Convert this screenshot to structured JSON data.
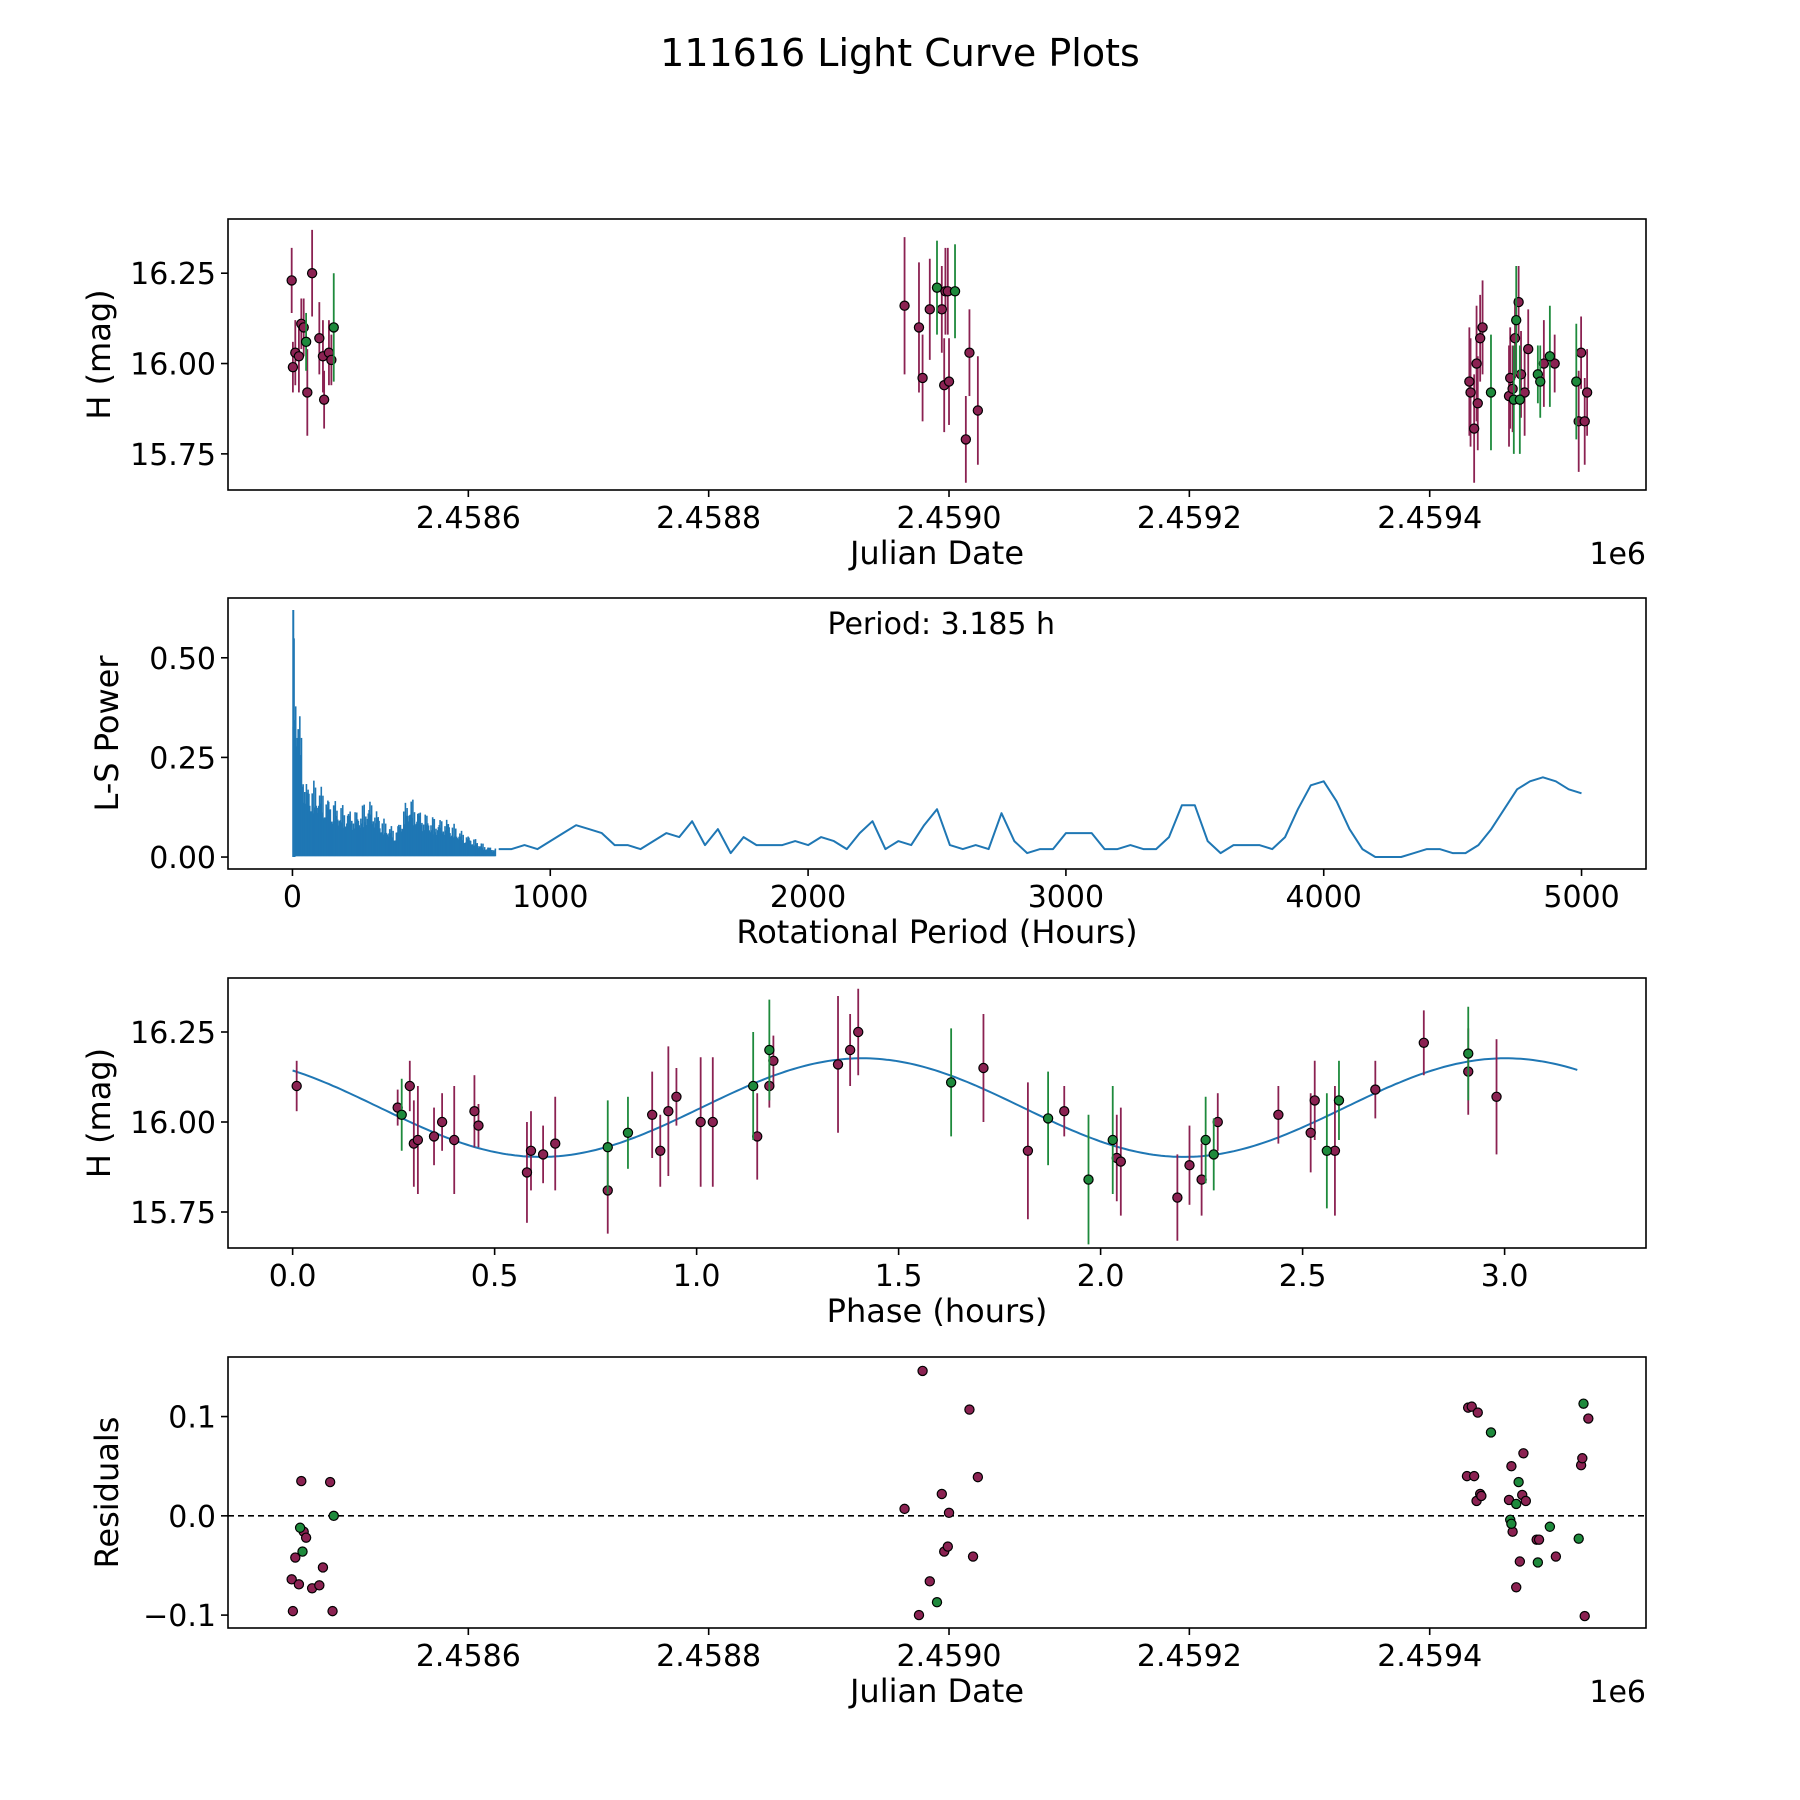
{
  "figure_title": "111616 Light Curve Plots",
  "colors": {
    "magenta_points": "#8b2252",
    "green_points": "#1e8a3c",
    "fit_line": "#1f77b4",
    "axis": "#000000"
  },
  "chart_data": [
    {
      "id": "light_curve",
      "type": "scatter",
      "xlabel": "Julian Date",
      "ylabel": "H (mag)",
      "x_offset_label": "1e6",
      "xlim": [
        2.4584,
        2.45958
      ],
      "ylim": [
        15.65,
        16.4
      ],
      "xticks": [
        2.4586,
        2.4588,
        2.459,
        2.4592,
        2.4594
      ],
      "xtick_labels": [
        "2.4586",
        "2.4588",
        "2.4590",
        "2.4592",
        "2.4594"
      ],
      "yticks": [
        15.75,
        16.0,
        16.25
      ],
      "ytick_labels": [
        "15.75",
        "16.00",
        "16.25"
      ],
      "series": [
        {
          "name": "magenta",
          "color": "#8b2252",
          "x": [
            2.458453,
            2.458454,
            2.458456,
            2.458459,
            2.458461,
            2.458463,
            2.458466,
            2.45847,
            2.458476,
            2.458479,
            2.45848,
            2.458484,
            2.458486,
            2.458963,
            2.458975,
            2.458978,
            2.458984,
            2.458994,
            2.458996,
            2.458997,
            2.458999,
            2.459,
            2.459014,
            2.459017,
            2.459024,
            2.459433,
            2.459434,
            2.459437,
            2.459439,
            2.45944,
            2.459442,
            2.459444,
            2.459466,
            2.459467,
            2.459469,
            2.459471,
            2.459474,
            2.459476,
            2.459479,
            2.459482,
            2.459495,
            2.459504,
            2.459524,
            2.459526,
            2.459529,
            2.459531
          ],
          "y": [
            16.23,
            15.99,
            16.03,
            16.02,
            16.11,
            16.1,
            15.92,
            16.25,
            16.07,
            16.02,
            15.9,
            16.03,
            16.01,
            16.16,
            16.1,
            15.96,
            16.15,
            16.15,
            15.94,
            16.2,
            16.2,
            15.95,
            15.79,
            16.03,
            15.87,
            15.95,
            15.92,
            15.82,
            16.0,
            15.89,
            16.07,
            16.1,
            15.91,
            15.96,
            15.93,
            16.07,
            16.17,
            15.97,
            15.92,
            16.04,
            16.0,
            16.0,
            15.84,
            16.03,
            15.84,
            15.92
          ],
          "err": [
            0.09,
            0.07,
            0.09,
            0.1,
            0.07,
            0.08,
            0.12,
            0.12,
            0.1,
            0.1,
            0.08,
            0.09,
            0.07,
            0.19,
            0.18,
            0.12,
            0.14,
            0.12,
            0.13,
            0.12,
            0.12,
            0.12,
            0.12,
            0.12,
            0.15,
            0.15,
            0.15,
            0.15,
            0.16,
            0.13,
            0.12,
            0.13,
            0.14,
            0.14,
            0.12,
            0.11,
            0.1,
            0.12,
            0.12,
            0.11,
            0.12,
            0.08,
            0.14,
            0.1,
            0.12,
            0.12
          ]
        },
        {
          "name": "green",
          "color": "#1e8a3c",
          "x": [
            2.458465,
            2.458488,
            2.45899,
            2.459005,
            2.459451,
            2.45947,
            2.459472,
            2.459475,
            2.45949,
            2.459492,
            2.4595,
            2.459522
          ],
          "y": [
            16.06,
            16.1,
            16.21,
            16.2,
            15.92,
            15.9,
            16.12,
            15.9,
            15.97,
            15.95,
            16.02,
            15.95
          ],
          "err": [
            0.08,
            0.15,
            0.13,
            0.13,
            0.16,
            0.15,
            0.15,
            0.15,
            0.08,
            0.1,
            0.14,
            0.16
          ]
        }
      ]
    },
    {
      "id": "periodogram",
      "type": "line",
      "xlabel": "Rotational Period (Hours)",
      "ylabel": "L-S Power",
      "annotation": "Period: 3.185 h",
      "xlim": [
        -250,
        5250
      ],
      "ylim": [
        -0.03,
        0.65
      ],
      "xticks": [
        0,
        1000,
        2000,
        3000,
        4000,
        5000
      ],
      "xtick_labels": [
        "0",
        "1000",
        "2000",
        "3000",
        "4000",
        "5000"
      ],
      "yticks": [
        0.0,
        0.25,
        0.5
      ],
      "ytick_labels": [
        "0.00",
        "0.25",
        "0.50"
      ],
      "peak": {
        "x": 3.185,
        "y": 0.62
      },
      "dense_envelope": {
        "x": [
          0,
          50,
          100,
          150,
          200,
          250,
          300,
          350,
          400,
          450,
          500,
          550,
          600,
          650,
          700,
          750,
          800
        ],
        "y": [
          0.62,
          0.2,
          0.19,
          0.15,
          0.13,
          0.12,
          0.15,
          0.1,
          0.07,
          0.16,
          0.12,
          0.1,
          0.1,
          0.07,
          0.05,
          0.03,
          0.02
        ]
      },
      "envelope_x": [
        800,
        850,
        900,
        950,
        1000,
        1050,
        1100,
        1150,
        1200,
        1250,
        1300,
        1350,
        1400,
        1450,
        1500,
        1550,
        1600,
        1650,
        1700,
        1750,
        1800,
        1850,
        1900,
        1950,
        2000,
        2050,
        2100,
        2150,
        2200,
        2250,
        2300,
        2350,
        2400,
        2450,
        2500,
        2550,
        2600,
        2650,
        2700,
        2750,
        2800,
        2850,
        2900,
        2950,
        3000,
        3050,
        3100,
        3150,
        3200,
        3250,
        3300,
        3350,
        3400,
        3450,
        3500,
        3550,
        3600,
        3650,
        3700,
        3750,
        3800,
        3850,
        3900,
        3950,
        4000,
        4050,
        4100,
        4150,
        4200,
        4250,
        4300,
        4350,
        4400,
        4450,
        4500,
        4550,
        4600,
        4650,
        4700,
        4750,
        4800,
        4850,
        4900,
        4950,
        5000
      ],
      "envelope_y": [
        0.02,
        0.02,
        0.03,
        0.02,
        0.04,
        0.06,
        0.08,
        0.07,
        0.06,
        0.03,
        0.03,
        0.02,
        0.04,
        0.06,
        0.05,
        0.09,
        0.03,
        0.07,
        0.01,
        0.05,
        0.03,
        0.03,
        0.03,
        0.04,
        0.03,
        0.05,
        0.04,
        0.02,
        0.06,
        0.09,
        0.02,
        0.04,
        0.03,
        0.08,
        0.12,
        0.03,
        0.02,
        0.03,
        0.02,
        0.11,
        0.04,
        0.01,
        0.02,
        0.02,
        0.06,
        0.06,
        0.06,
        0.02,
        0.02,
        0.03,
        0.02,
        0.02,
        0.05,
        0.13,
        0.13,
        0.04,
        0.01,
        0.03,
        0.03,
        0.03,
        0.02,
        0.05,
        0.12,
        0.18,
        0.19,
        0.14,
        0.07,
        0.02,
        0.0,
        0.0,
        0.0,
        0.01,
        0.02,
        0.02,
        0.01,
        0.01,
        0.03,
        0.07,
        0.12,
        0.17,
        0.19,
        0.2,
        0.19,
        0.17,
        0.16
      ]
    },
    {
      "id": "phased_curve",
      "type": "scatter",
      "xlabel": "Phase (hours)",
      "ylabel": "H (mag)",
      "xlim": [
        -0.16,
        3.35
      ],
      "ylim": [
        15.65,
        16.4
      ],
      "xticks": [
        0.0,
        0.5,
        1.0,
        1.5,
        2.0,
        2.5,
        3.0
      ],
      "xtick_labels": [
        "0.0",
        "0.5",
        "1.0",
        "1.5",
        "2.0",
        "2.5",
        "3.0"
      ],
      "yticks": [
        15.75,
        16.0,
        16.25
      ],
      "ytick_labels": [
        "15.75",
        "16.00",
        "16.25"
      ],
      "fit": {
        "type": "sinusoid",
        "mean": 16.04,
        "amplitude": 0.137,
        "period_hours": 1.5925,
        "peak_phase": 1.41
      },
      "series": [
        {
          "name": "magenta",
          "color": "#8b2252",
          "x": [
            0.01,
            0.26,
            0.29,
            0.3,
            0.31,
            0.35,
            0.37,
            0.4,
            0.45,
            0.46,
            0.58,
            0.59,
            0.62,
            0.65,
            0.78,
            0.89,
            0.91,
            0.93,
            0.95,
            1.01,
            1.04,
            1.15,
            1.18,
            1.19,
            1.35,
            1.38,
            1.4,
            1.71,
            1.82,
            1.91,
            2.04,
            2.05,
            2.19,
            2.22,
            2.25,
            2.29,
            2.44,
            2.52,
            2.53,
            2.58,
            2.68,
            2.8,
            2.91,
            2.98
          ],
          "y": [
            16.1,
            16.04,
            16.1,
            15.94,
            15.95,
            15.96,
            16.0,
            15.95,
            16.03,
            15.99,
            15.86,
            15.92,
            15.91,
            15.94,
            15.81,
            16.02,
            15.92,
            16.03,
            16.07,
            16.0,
            16.0,
            15.96,
            16.1,
            16.17,
            16.16,
            16.2,
            16.25,
            16.15,
            15.92,
            16.03,
            15.9,
            15.89,
            15.79,
            15.88,
            15.84,
            16.0,
            16.02,
            15.97,
            16.06,
            15.92,
            16.09,
            16.22,
            16.14,
            16.07
          ],
          "err": [
            0.07,
            0.05,
            0.07,
            0.12,
            0.15,
            0.08,
            0.08,
            0.15,
            0.1,
            0.06,
            0.14,
            0.11,
            0.08,
            0.13,
            0.12,
            0.12,
            0.1,
            0.18,
            0.08,
            0.18,
            0.18,
            0.12,
            0.06,
            0.07,
            0.19,
            0.1,
            0.12,
            0.15,
            0.19,
            0.07,
            0.12,
            0.15,
            0.12,
            0.11,
            0.1,
            0.08,
            0.08,
            0.11,
            0.11,
            0.18,
            0.08,
            0.09,
            0.12,
            0.16
          ]
        },
        {
          "name": "green",
          "color": "#1e8a3c",
          "x": [
            0.27,
            0.78,
            0.83,
            1.14,
            1.18,
            1.63,
            1.87,
            1.97,
            2.03,
            2.26,
            2.28,
            2.56,
            2.59,
            2.91
          ],
          "y": [
            16.02,
            15.93,
            15.97,
            16.1,
            16.2,
            16.11,
            16.01,
            15.84,
            15.95,
            15.95,
            15.91,
            15.92,
            16.06,
            16.19
          ],
          "err": [
            0.1,
            0.13,
            0.1,
            0.15,
            0.14,
            0.15,
            0.13,
            0.18,
            0.15,
            0.12,
            0.1,
            0.16,
            0.11,
            0.13
          ]
        }
      ]
    },
    {
      "id": "residuals",
      "type": "scatter",
      "xlabel": "Julian Date",
      "ylabel": "Residuals",
      "x_offset_label": "1e6",
      "xlim": [
        2.4584,
        2.45958
      ],
      "ylim": [
        -0.113,
        0.16
      ],
      "xticks": [
        2.4586,
        2.4588,
        2.459,
        2.4592,
        2.4594
      ],
      "xtick_labels": [
        "2.4586",
        "2.4588",
        "2.4590",
        "2.4592",
        "2.4594"
      ],
      "yticks": [
        -0.1,
        0.0,
        0.1
      ],
      "ytick_labels": [
        "−0.1",
        "0.0",
        "0.1"
      ],
      "zero_line": 0.0,
      "series": [
        {
          "name": "magenta",
          "color": "#8b2252",
          "x": [
            2.458453,
            2.458454,
            2.458456,
            2.458459,
            2.458461,
            2.458463,
            2.458465,
            2.45847,
            2.458476,
            2.458479,
            2.458485,
            2.458487,
            2.458963,
            2.458975,
            2.458978,
            2.458984,
            2.458994,
            2.458996,
            2.458999,
            2.459,
            2.459017,
            2.45902,
            2.459024,
            2.459431,
            2.459432,
            2.459435,
            2.459437,
            2.459439,
            2.45944,
            2.459442,
            2.459443,
            2.459466,
            2.459468,
            2.459469,
            2.459472,
            2.459475,
            2.459477,
            2.459478,
            2.45948,
            2.459489,
            2.459491,
            2.459505,
            2.459526,
            2.459527,
            2.459529,
            2.459532
          ],
          "y": [
            -0.064,
            -0.096,
            -0.042,
            -0.069,
            0.035,
            -0.016,
            -0.022,
            -0.073,
            -0.07,
            -0.052,
            0.034,
            -0.096,
            0.007,
            -0.1,
            0.146,
            -0.066,
            0.022,
            -0.036,
            -0.031,
            0.003,
            0.107,
            -0.041,
            0.039,
            0.04,
            0.109,
            0.11,
            0.04,
            0.015,
            0.104,
            0.022,
            0.02,
            0.016,
            0.05,
            -0.016,
            -0.072,
            -0.046,
            0.021,
            0.063,
            0.015,
            -0.024,
            -0.024,
            -0.041,
            0.051,
            0.058,
            -0.101,
            0.098
          ],
          "comment": ""
        },
        {
          "name": "green",
          "color": "#1e8a3c",
          "x": [
            2.45846,
            2.458462,
            2.458488,
            2.45899,
            2.459451,
            2.459467,
            2.459468,
            2.459472,
            2.459474,
            2.45949,
            2.4595,
            2.459524,
            2.459528
          ],
          "y": [
            -0.012,
            -0.036,
            0.0,
            -0.087,
            0.084,
            -0.004,
            -0.008,
            0.012,
            0.034,
            -0.047,
            -0.011,
            -0.023,
            0.113
          ]
        }
      ]
    }
  ]
}
